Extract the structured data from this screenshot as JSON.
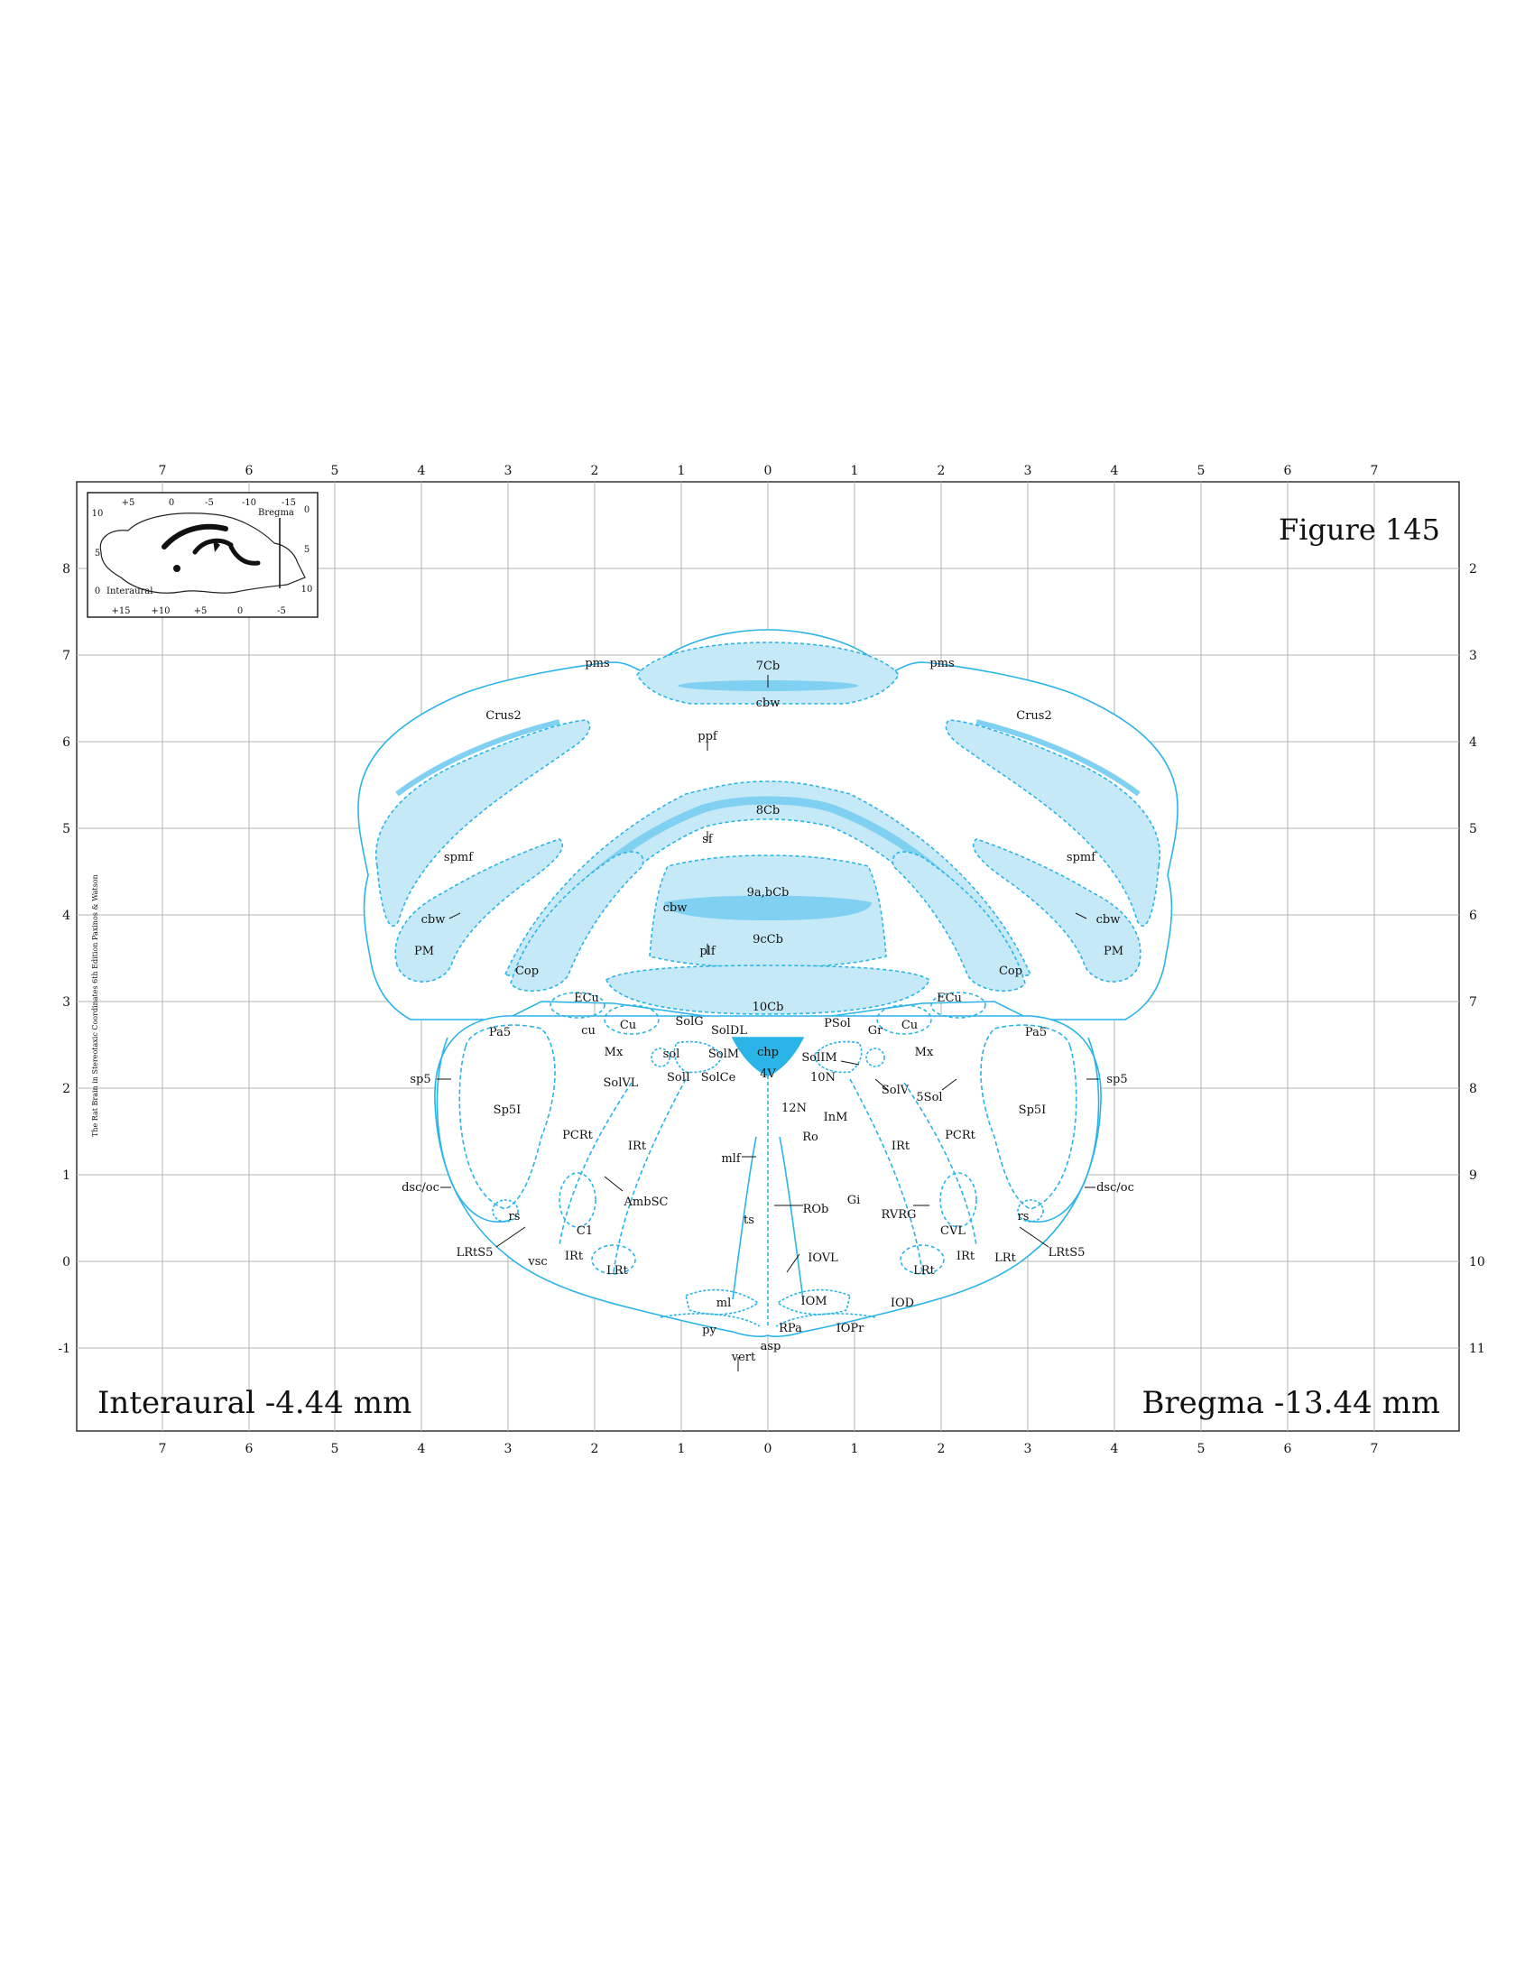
{
  "figure_title": "Figure 145",
  "interaural_label": "Interaural -4.44 mm",
  "bregma_label": "Bregma -13.44 mm",
  "credit": "The Rat Brain in Stereotaxic Coordinates 6th Edition Paxinos & Watson",
  "axes": {
    "top_ticks": [
      "7",
      "6",
      "5",
      "4",
      "3",
      "2",
      "1",
      "0",
      "1",
      "2",
      "3",
      "4",
      "5",
      "6",
      "7"
    ],
    "bottom_ticks": [
      "7",
      "6",
      "5",
      "4",
      "3",
      "2",
      "1",
      "0",
      "1",
      "2",
      "3",
      "4",
      "5",
      "6",
      "7"
    ],
    "left_ticks": [
      "8",
      "7",
      "6",
      "5",
      "4",
      "3",
      "2",
      "1",
      "0",
      "-1"
    ],
    "right_ticks": [
      "2",
      "3",
      "4",
      "5",
      "6",
      "7",
      "8",
      "9",
      "10",
      "11"
    ]
  },
  "inset": {
    "bregma": "Bregma",
    "interaural": "Interaural",
    "top_ticks": [
      "+5",
      "0",
      "-5",
      "-10",
      "-15"
    ],
    "bottom_ticks": [
      "+15",
      "+10",
      "+5",
      "0",
      "-5"
    ],
    "left_ticks": [
      "10",
      "5",
      "0"
    ],
    "right_ticks": [
      "0",
      "5",
      "10"
    ]
  },
  "structures": {
    "pms_l": "pms",
    "pms_r": "pms",
    "cb7": "7Cb",
    "cbw_top": "cbw",
    "crus2_l": "Crus2",
    "crus2_r": "Crus2",
    "ppf": "ppf",
    "cb8": "8Cb",
    "spmf_l": "spmf",
    "spmf_r": "spmf",
    "sf": "sf",
    "cb9ab": "9a,bCb",
    "cbw_mid": "cbw",
    "cb9c": "9cCb",
    "cbw_l": "cbw",
    "cbw_r": "cbw",
    "pm_l": "PM",
    "pm_r": "PM",
    "plf": "plf",
    "cop_l": "Cop",
    "cop_r": "Cop",
    "cb10": "10Cb",
    "ecu_l": "ECu",
    "ecu_r": "ECu",
    "pa5_l": "Pa5",
    "pa5_r": "Pa5",
    "cu_small": "cu",
    "cu_l": "Cu",
    "cu_r": "Cu",
    "solg": "SolG",
    "soldl": "SolDL",
    "psol": "PSol",
    "gr": "Gr",
    "mx_l": "Mx",
    "mx_r": "Mx",
    "sol": "sol",
    "solm": "SolM",
    "chp": "chp",
    "solim": "SolIM",
    "sp5_l": "sp5",
    "sp5_r": "sp5",
    "solvl": "SolVL",
    "soli": "SolI",
    "solce": "SolCe",
    "v4": "4V",
    "n10": "10N",
    "solv": "SolV",
    "sol5": "5Sol",
    "sp5i_l": "Sp5I",
    "sp5i_r": "Sp5I",
    "n12": "12N",
    "inm": "InM",
    "pcrt_l": "PCRt",
    "pcrt_r": "PCRt",
    "ro": "Ro",
    "irt_l": "IRt",
    "irt_r": "IRt",
    "mlf": "mlf",
    "dscoc_l": "dsc/oc",
    "dscoc_r": "dsc/oc",
    "ambsc": "AmbSC",
    "gi": "Gi",
    "rob": "ROb",
    "rvrg": "RVRG",
    "rs_l": "rs",
    "rs_r": "rs",
    "ts": "ts",
    "c1": "C1",
    "cvl": "CVL",
    "lrts5_l": "LRtS5",
    "lrts5_r": "LRtS5",
    "vsc": "vsc",
    "irt2_l": "IRt",
    "irt2_r": "IRt",
    "lrt_l": "LRt",
    "lrt_r": "LRt",
    "lrt_r2": "LRt",
    "iovl": "IOVL",
    "ml": "ml",
    "iom": "IOM",
    "iod": "IOD",
    "py": "py",
    "rpa": "RPa",
    "iopr": "IOPr",
    "asp": "asp",
    "vert": "vert"
  }
}
